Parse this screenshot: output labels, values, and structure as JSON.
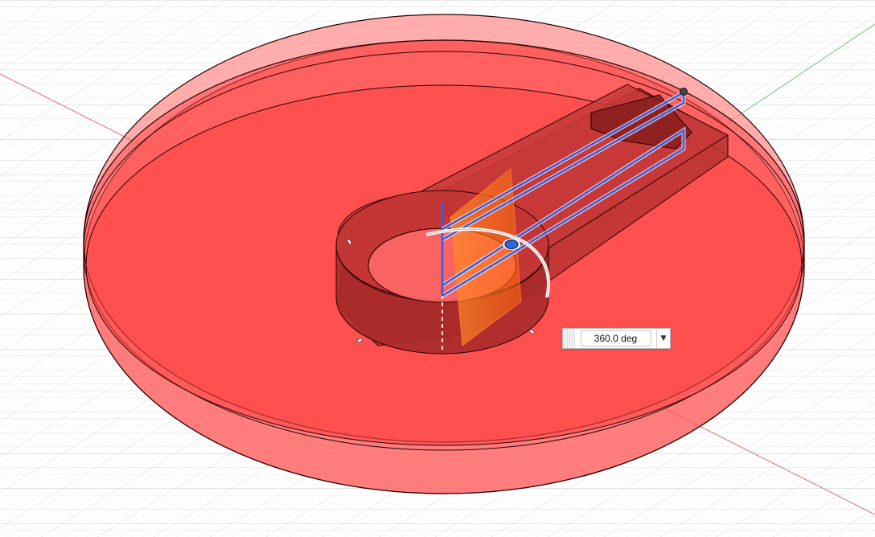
{
  "revolve": {
    "angle_value": "360.0 deg",
    "dropdown_icon": "chevron-down-icon"
  },
  "colors": {
    "body": "#ff4b4b",
    "body_edge": "#1a0000",
    "part": "#a62a2a",
    "axis": "#3d5bd9",
    "grid": "#d6d6d6",
    "x_axis": "#e06060",
    "y_axis": "#60c060"
  }
}
